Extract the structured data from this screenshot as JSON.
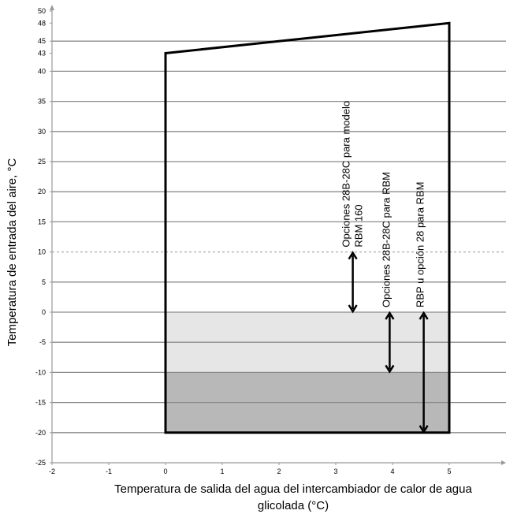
{
  "chart_data": {
    "type": "area",
    "title": "",
    "xlabel_lines": [
      "Temperatura de salida del agua del intercambiador de calor de agua",
      "glicolada (°C)"
    ],
    "ylabel": "Temperatura de entrada del aire, °C",
    "xlim": [
      -2,
      6
    ],
    "ylim": [
      -25,
      50
    ],
    "x_ticks": [
      -2,
      -1,
      0,
      1,
      2,
      3,
      4,
      5
    ],
    "y_ticks": [
      50,
      48,
      45,
      43,
      40,
      35,
      30,
      25,
      20,
      15,
      10,
      5,
      0,
      -5,
      -10,
      -15,
      -20,
      -25
    ],
    "gridlines_y": [
      45,
      40,
      35,
      30,
      25,
      20,
      15,
      5,
      0,
      -5,
      -10,
      -15,
      -20
    ],
    "dotted_line_y": 10,
    "grid": true,
    "operating_envelope": {
      "x": [
        0,
        0,
        5,
        5
      ],
      "y": [
        -20,
        43,
        48,
        -20
      ]
    },
    "shaded_regions": [
      {
        "x": [
          0,
          5
        ],
        "y": [
          -10,
          0
        ],
        "color": "#e6e6e6"
      },
      {
        "x": [
          0,
          5
        ],
        "y": [
          -20,
          -10
        ],
        "color": "#b8b8b8"
      }
    ],
    "annotations": [
      {
        "lines": [
          "Opciones 28B-28C para modelo",
          "RBM 160"
        ],
        "x_anchor": 3.3,
        "arrow_x": 3.3,
        "arrow_y": [
          10,
          0
        ]
      },
      {
        "lines": [
          "Opciones 28B-28C para RBM"
        ],
        "x_anchor": 3.95,
        "arrow_x": 3.95,
        "arrow_y": [
          0,
          -10
        ]
      },
      {
        "lines": [
          "RBP u opción 28 para RBM"
        ],
        "x_anchor": 4.55,
        "arrow_x": 4.55,
        "arrow_y": [
          0,
          -20
        ]
      }
    ],
    "colors": {
      "axis": "#999999",
      "grid": "#8c8c8c",
      "dotted": "#aaaaaa",
      "outline": "#000000"
    }
  }
}
